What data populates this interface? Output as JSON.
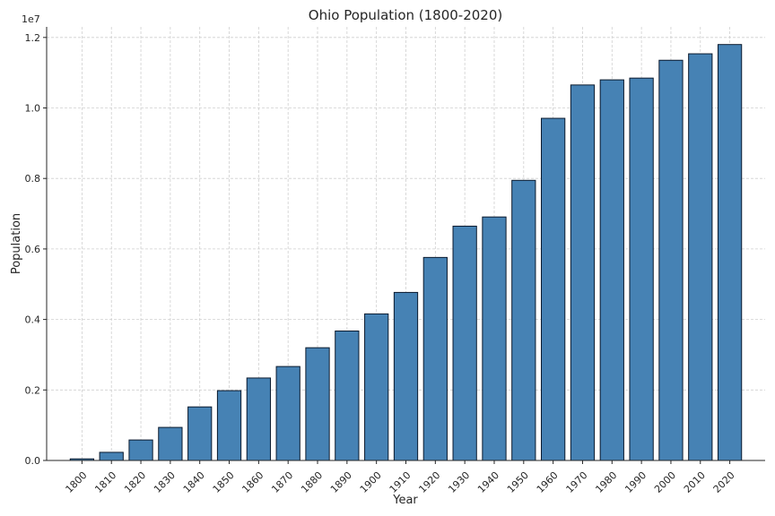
{
  "chart_data": {
    "type": "bar",
    "title": "Ohio Population (1800-2020)",
    "xlabel": "Year",
    "ylabel": "Population",
    "offset_label": "1e7",
    "categories": [
      "1800",
      "1810",
      "1820",
      "1830",
      "1840",
      "1850",
      "1860",
      "1870",
      "1880",
      "1890",
      "1900",
      "1910",
      "1920",
      "1930",
      "1940",
      "1950",
      "1960",
      "1970",
      "1980",
      "1990",
      "2000",
      "2010",
      "2020"
    ],
    "values": [
      45365,
      230760,
      581434,
      937903,
      1519467,
      1980329,
      2339511,
      2665260,
      3198062,
      3672329,
      4157545,
      4767121,
      5759394,
      6646697,
      6907612,
      7946627,
      9706397,
      10652017,
      10797630,
      10847115,
      11353140,
      11536504,
      11799448
    ],
    "ylim": [
      0,
      12300000
    ],
    "yticks": [
      0,
      2000000,
      4000000,
      6000000,
      8000000,
      10000000,
      12000000
    ],
    "ytick_labels": [
      "0.0",
      "0.2",
      "0.4",
      "0.6",
      "0.8",
      "1.0",
      "1.2"
    ],
    "grid": true,
    "bar_color": "#4682b4",
    "edge_color": "#0b1a2e"
  }
}
